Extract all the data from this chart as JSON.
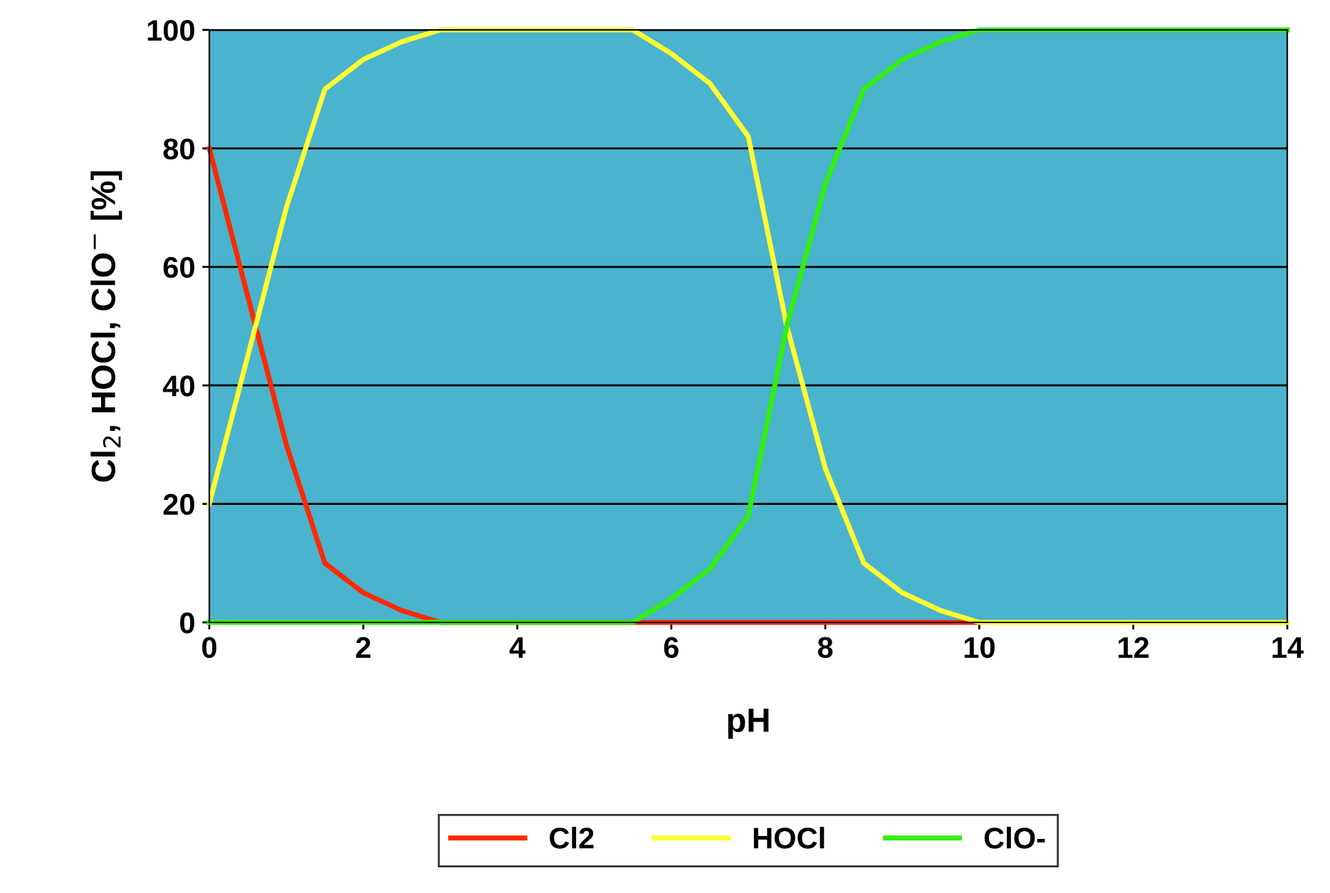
{
  "chart_data": {
    "type": "line",
    "xlabel": "pH",
    "ylabel": "Cl$_{2}$, HOCl, ClO$^{−}$ [%]",
    "x": [
      0,
      0.5,
      1,
      1.5,
      2,
      2.5,
      3,
      3.5,
      4,
      4.5,
      5,
      5.5,
      6,
      6.5,
      7,
      7.5,
      8,
      8.5,
      9,
      9.5,
      10,
      10.5,
      11,
      11.5,
      12,
      12.5,
      13,
      13.5,
      14
    ],
    "series": [
      {
        "name": "Cl2",
        "color": "#ff2a00",
        "values": [
          80,
          55,
          30,
          10,
          5,
          2,
          0,
          0,
          0,
          0,
          0,
          0,
          0,
          0,
          0,
          0,
          0,
          0,
          0,
          0,
          0,
          null,
          null,
          null,
          null,
          null,
          null,
          null,
          null
        ]
      },
      {
        "name": "HOCl",
        "color": "#ffff33",
        "values": [
          20,
          45,
          70,
          90,
          95,
          98,
          100,
          100,
          100,
          100,
          100,
          100,
          96,
          91,
          82,
          50,
          26,
          10,
          5,
          2,
          0,
          0,
          0,
          0,
          0,
          0,
          0,
          0,
          0
        ]
      },
      {
        "name": "ClO-",
        "color": "#33ee11",
        "values": [
          0,
          0,
          0,
          0,
          0,
          0,
          0,
          0,
          0,
          0,
          0,
          0,
          4,
          9,
          18,
          50,
          74,
          90,
          95,
          98,
          100,
          100,
          100,
          100,
          100,
          100,
          100,
          100,
          100
        ]
      }
    ],
    "xlim": [
      0,
      14
    ],
    "xticks": [
      0,
      2,
      4,
      6,
      8,
      10,
      12,
      14
    ],
    "ylim": [
      0,
      100
    ],
    "yticks": [
      0,
      20,
      40,
      60,
      80,
      100
    ],
    "grid": "y",
    "legend": "bottom",
    "marker": "none",
    "line_style": "solid"
  }
}
